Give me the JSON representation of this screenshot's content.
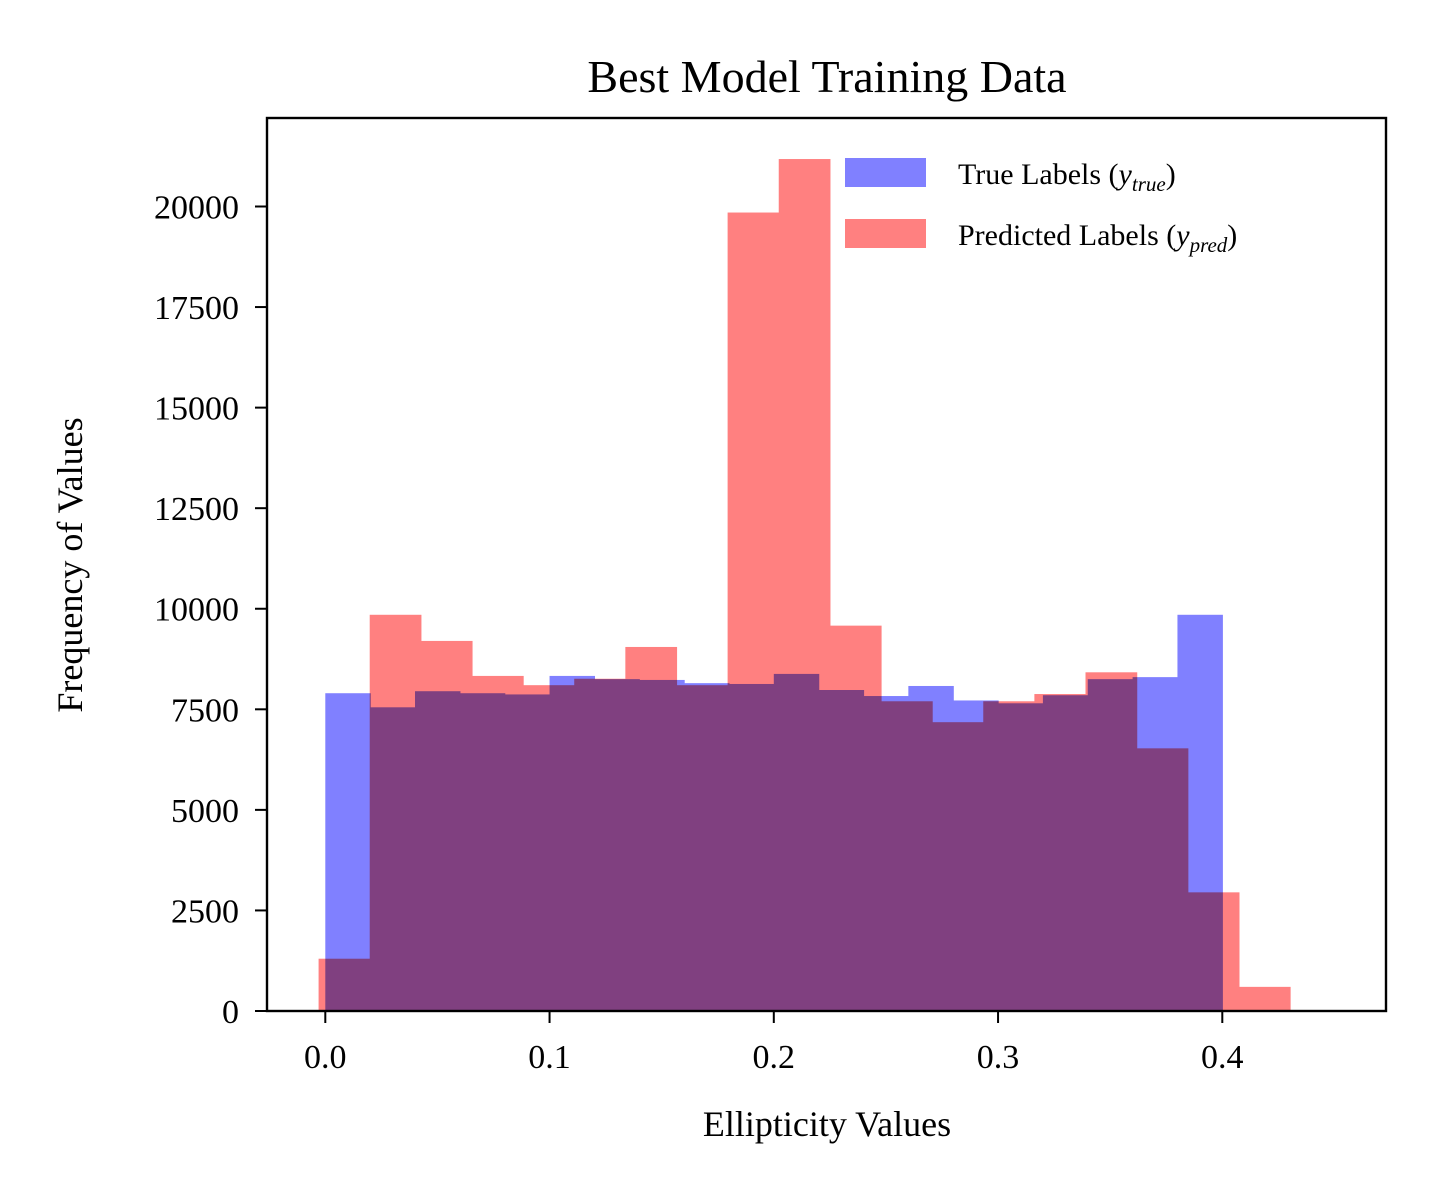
{
  "chart_data": {
    "type": "bar",
    "title": "Best Model Training Data",
    "xlabel": "Ellipticity Values",
    "ylabel": "Frequency of Values",
    "xlim": [
      -0.026,
      0.473
    ],
    "ylim": [
      0,
      22200
    ],
    "xticks": [
      0.0,
      0.1,
      0.2,
      0.3,
      0.4
    ],
    "xtick_labels": [
      "0.0",
      "0.1",
      "0.2",
      "0.3",
      "0.4"
    ],
    "yticks": [
      0,
      2500,
      5000,
      7500,
      10000,
      12500,
      15000,
      17500,
      20000
    ],
    "ytick_labels": [
      "0",
      "2500",
      "5000",
      "7500",
      "10000",
      "12500",
      "15000",
      "17500",
      "20000"
    ],
    "grid": false,
    "legend_position": "top-right",
    "series": [
      {
        "name": "True Labels",
        "legend_prefix": "True Labels (",
        "legend_var": "y",
        "legend_sub": "true",
        "legend_suffix": ")",
        "color": "#8080ff",
        "bins": [
          {
            "x0": 0.0,
            "x1": 0.02,
            "count": 7900
          },
          {
            "x0": 0.02,
            "x1": 0.04,
            "count": 7550
          },
          {
            "x0": 0.04,
            "x1": 0.06,
            "count": 7950
          },
          {
            "x0": 0.06,
            "x1": 0.08,
            "count": 7900
          },
          {
            "x0": 0.08,
            "x1": 0.1,
            "count": 7870
          },
          {
            "x0": 0.1,
            "x1": 0.12,
            "count": 8330
          },
          {
            "x0": 0.12,
            "x1": 0.14,
            "count": 8250
          },
          {
            "x0": 0.14,
            "x1": 0.16,
            "count": 8230
          },
          {
            "x0": 0.16,
            "x1": 0.18,
            "count": 8150
          },
          {
            "x0": 0.18,
            "x1": 0.2,
            "count": 8130
          },
          {
            "x0": 0.2,
            "x1": 0.22,
            "count": 8380
          },
          {
            "x0": 0.22,
            "x1": 0.24,
            "count": 7980
          },
          {
            "x0": 0.24,
            "x1": 0.26,
            "count": 7830
          },
          {
            "x0": 0.26,
            "x1": 0.28,
            "count": 8080
          },
          {
            "x0": 0.28,
            "x1": 0.3,
            "count": 7720
          },
          {
            "x0": 0.3,
            "x1": 0.32,
            "count": 7650
          },
          {
            "x0": 0.32,
            "x1": 0.34,
            "count": 7850
          },
          {
            "x0": 0.34,
            "x1": 0.36,
            "count": 8250
          },
          {
            "x0": 0.36,
            "x1": 0.38,
            "count": 8300
          },
          {
            "x0": 0.38,
            "x1": 0.4,
            "count": 9850
          }
        ]
      },
      {
        "name": "Predicted Labels",
        "legend_prefix": "Predicted Labels (",
        "legend_var": "y",
        "legend_sub": "pred",
        "legend_suffix": ")",
        "color": "#ff8080",
        "bins": [
          {
            "x0": -0.003,
            "x1": 0.0198,
            "count": 1300
          },
          {
            "x0": 0.0198,
            "x1": 0.0426,
            "count": 9850
          },
          {
            "x0": 0.0426,
            "x1": 0.0654,
            "count": 9200
          },
          {
            "x0": 0.0654,
            "x1": 0.0882,
            "count": 8330
          },
          {
            "x0": 0.0882,
            "x1": 0.111,
            "count": 8100
          },
          {
            "x0": 0.111,
            "x1": 0.1338,
            "count": 8260
          },
          {
            "x0": 0.1338,
            "x1": 0.1566,
            "count": 9050
          },
          {
            "x0": 0.1566,
            "x1": 0.1794,
            "count": 8100
          },
          {
            "x0": 0.1794,
            "x1": 0.2022,
            "count": 19850
          },
          {
            "x0": 0.2022,
            "x1": 0.225,
            "count": 21180
          },
          {
            "x0": 0.225,
            "x1": 0.2478,
            "count": 9580
          },
          {
            "x0": 0.2478,
            "x1": 0.2706,
            "count": 7700
          },
          {
            "x0": 0.2706,
            "x1": 0.2934,
            "count": 7180
          },
          {
            "x0": 0.2934,
            "x1": 0.3162,
            "count": 7700
          },
          {
            "x0": 0.3162,
            "x1": 0.339,
            "count": 7880
          },
          {
            "x0": 0.339,
            "x1": 0.3618,
            "count": 8420
          },
          {
            "x0": 0.3618,
            "x1": 0.3846,
            "count": 6530
          },
          {
            "x0": 0.3846,
            "x1": 0.4074,
            "count": 2950
          },
          {
            "x0": 0.4074,
            "x1": 0.4302,
            "count": 600
          }
        ]
      }
    ]
  }
}
